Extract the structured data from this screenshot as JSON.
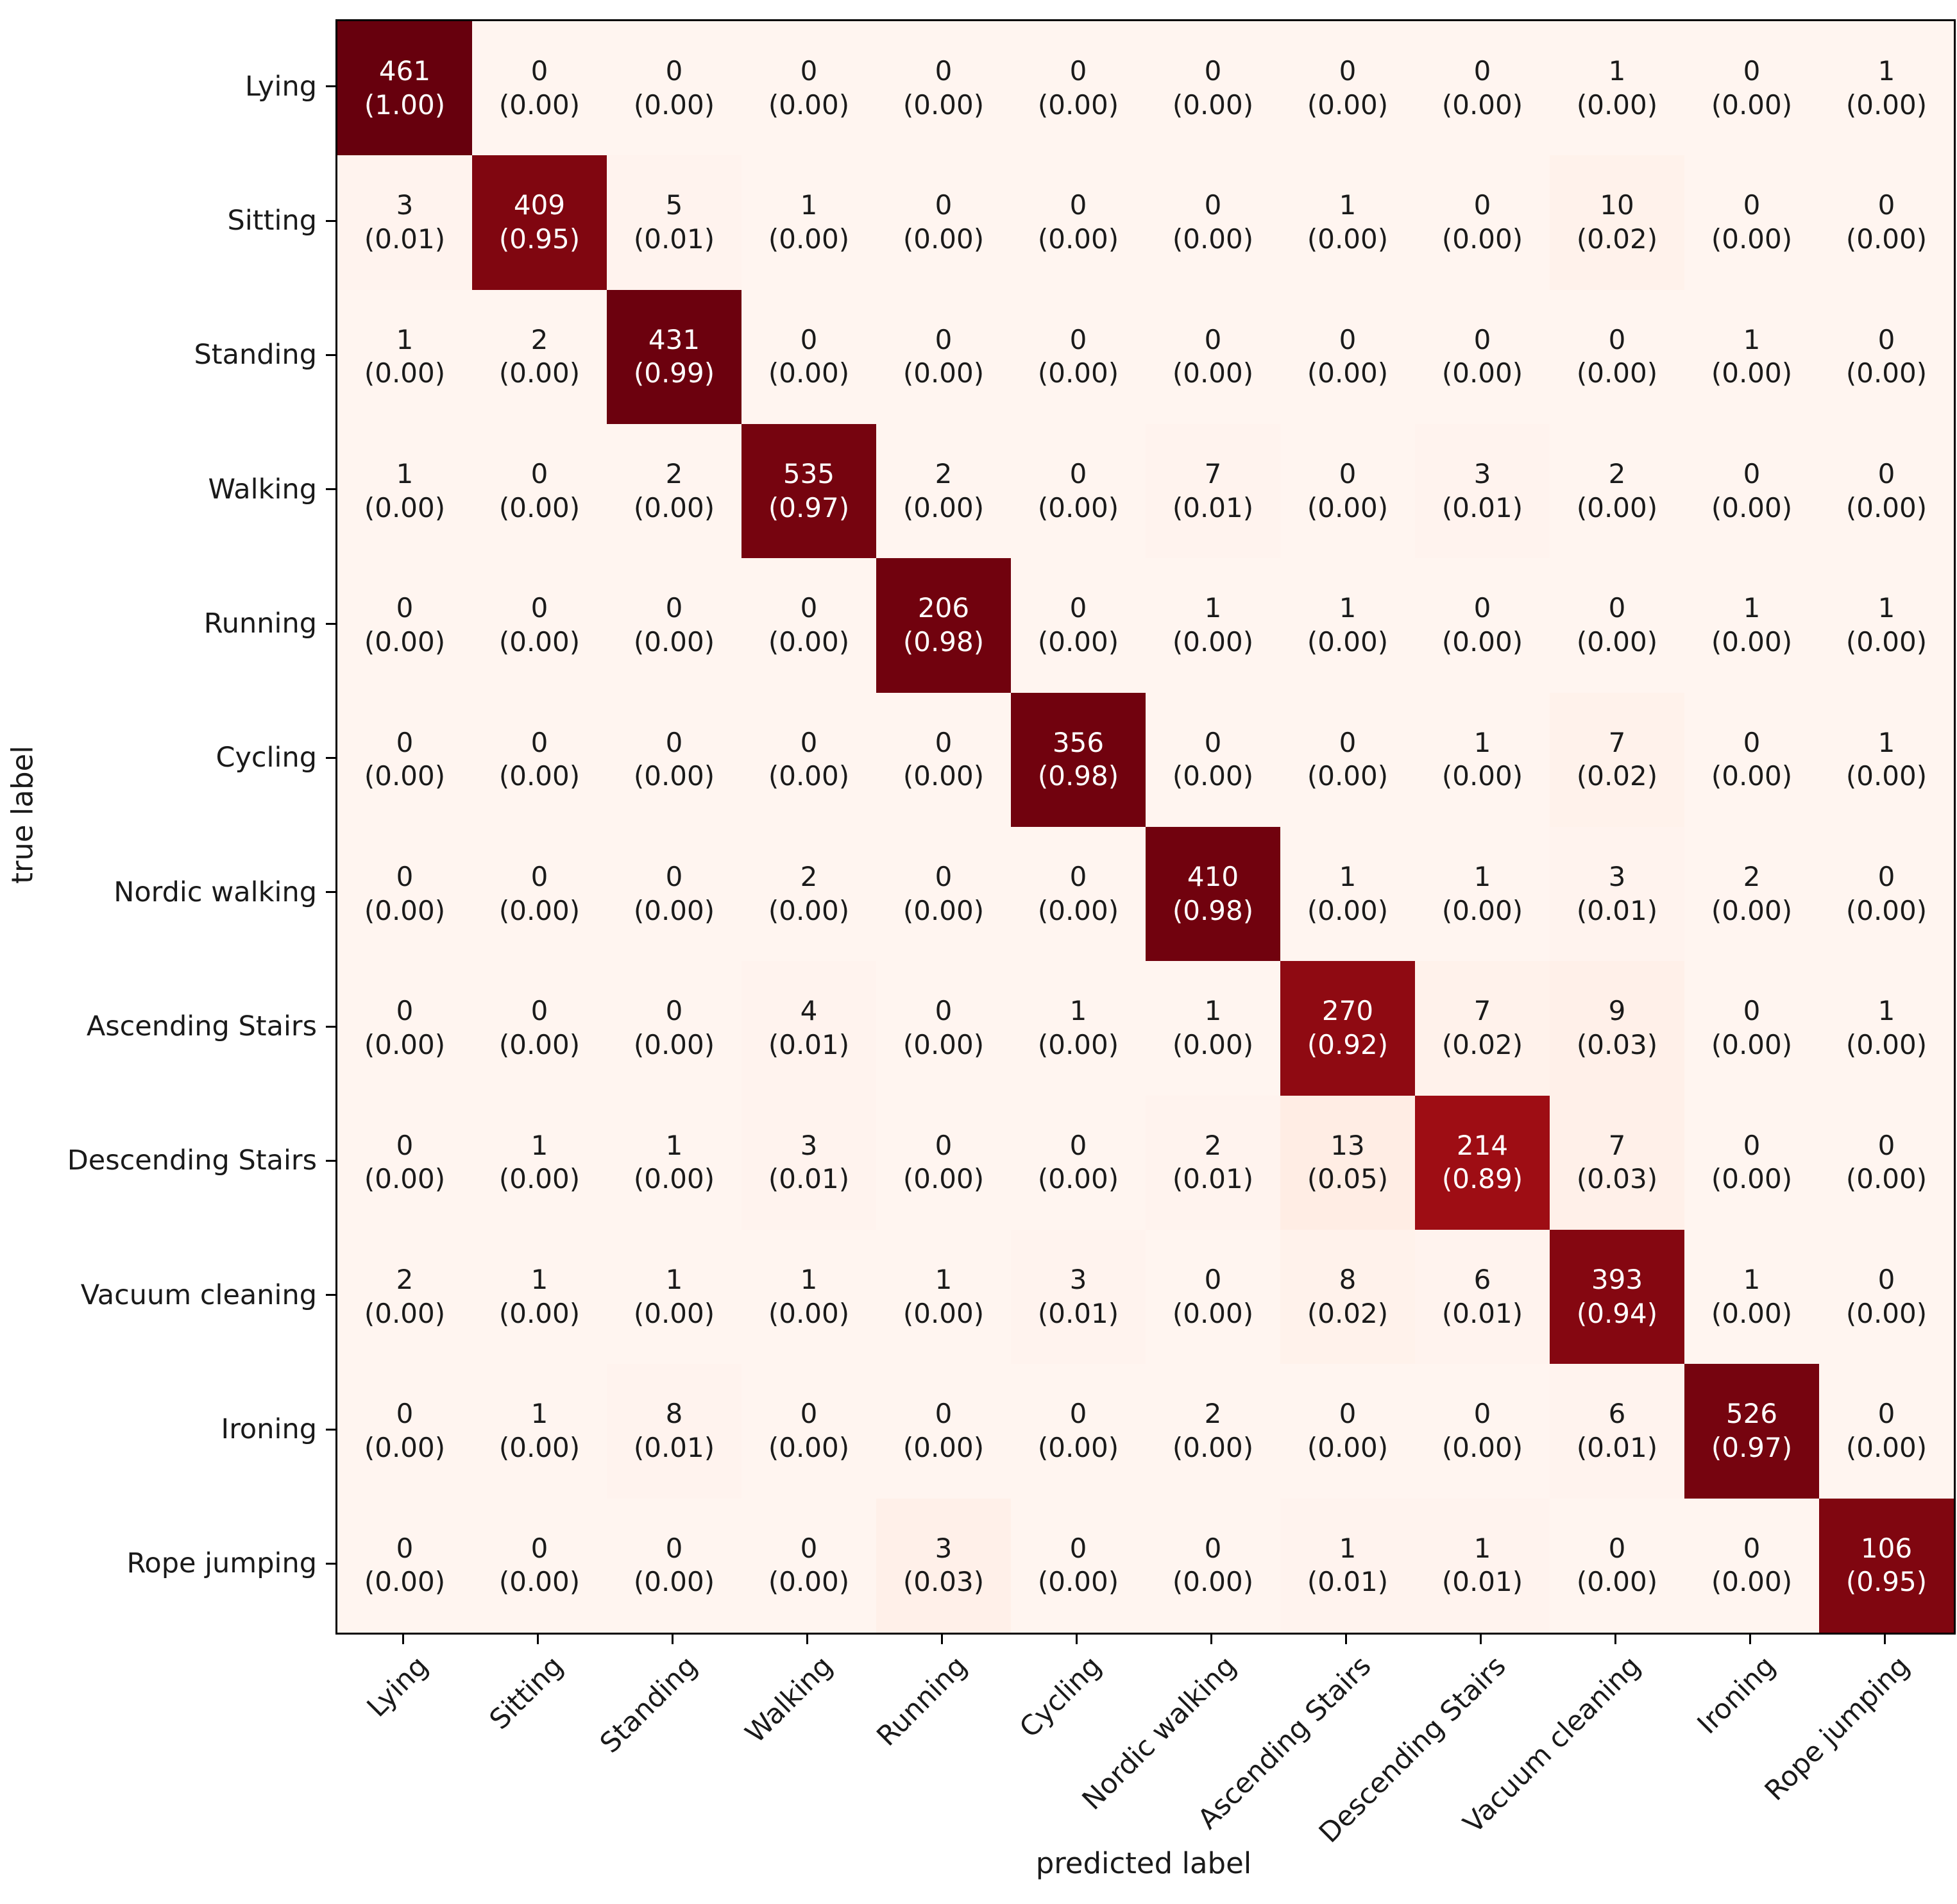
{
  "chart_data": {
    "type": "heatmap",
    "title": "",
    "xlabel": "predicted label",
    "ylabel": "true label",
    "labels": [
      "Lying",
      "Sitting",
      "Standing",
      "Walking",
      "Running",
      "Cycling",
      "Nordic walking",
      "Ascending Stairs",
      "Descending Stairs",
      "Vacuum cleaning",
      "Ironing",
      "Rope jumping"
    ],
    "cell_text_format": "count over (fraction), fraction shown with 2 decimals",
    "value_range": [
      0,
      1
    ],
    "grid": "off",
    "rows": [
      {
        "label": "Lying",
        "counts": [
          461,
          0,
          0,
          0,
          0,
          0,
          0,
          0,
          0,
          1,
          0,
          1
        ],
        "fractions": [
          1.0,
          0,
          0,
          0,
          0,
          0,
          0,
          0,
          0,
          0,
          0,
          0
        ]
      },
      {
        "label": "Sitting",
        "counts": [
          3,
          409,
          5,
          1,
          0,
          0,
          0,
          1,
          0,
          10,
          0,
          0
        ],
        "fractions": [
          0.01,
          0.95,
          0.01,
          0,
          0,
          0,
          0,
          0,
          0,
          0.02,
          0,
          0
        ]
      },
      {
        "label": "Standing",
        "counts": [
          1,
          2,
          431,
          0,
          0,
          0,
          0,
          0,
          0,
          0,
          1,
          0
        ],
        "fractions": [
          0,
          0,
          0.99,
          0,
          0,
          0,
          0,
          0,
          0,
          0,
          0,
          0
        ]
      },
      {
        "label": "Walking",
        "counts": [
          1,
          0,
          2,
          535,
          2,
          0,
          7,
          0,
          3,
          2,
          0,
          0
        ],
        "fractions": [
          0,
          0,
          0,
          0.97,
          0,
          0,
          0.01,
          0,
          0.01,
          0,
          0,
          0
        ]
      },
      {
        "label": "Running",
        "counts": [
          0,
          0,
          0,
          0,
          206,
          0,
          1,
          1,
          0,
          0,
          1,
          1
        ],
        "fractions": [
          0,
          0,
          0,
          0,
          0.98,
          0,
          0,
          0,
          0,
          0,
          0,
          0
        ]
      },
      {
        "label": "Cycling",
        "counts": [
          0,
          0,
          0,
          0,
          0,
          356,
          0,
          0,
          1,
          7,
          0,
          1
        ],
        "fractions": [
          0,
          0,
          0,
          0,
          0,
          0.98,
          0,
          0,
          0,
          0.02,
          0,
          0
        ]
      },
      {
        "label": "Nordic walking",
        "counts": [
          0,
          0,
          0,
          2,
          0,
          0,
          410,
          1,
          1,
          3,
          2,
          0
        ],
        "fractions": [
          0,
          0,
          0,
          0,
          0,
          0,
          0.98,
          0,
          0,
          0.01,
          0,
          0
        ]
      },
      {
        "label": "Ascending Stairs",
        "counts": [
          0,
          0,
          0,
          4,
          0,
          1,
          1,
          270,
          7,
          9,
          0,
          1
        ],
        "fractions": [
          0,
          0,
          0,
          0.01,
          0,
          0,
          0,
          0.92,
          0.02,
          0.03,
          0,
          0
        ]
      },
      {
        "label": "Descending Stairs",
        "counts": [
          0,
          1,
          1,
          3,
          0,
          0,
          2,
          13,
          214,
          7,
          0,
          0
        ],
        "fractions": [
          0,
          0,
          0,
          0.01,
          0,
          0,
          0.01,
          0.05,
          0.89,
          0.03,
          0,
          0
        ]
      },
      {
        "label": "Vacuum cleaning",
        "counts": [
          2,
          1,
          1,
          1,
          1,
          3,
          0,
          8,
          6,
          393,
          1,
          0
        ],
        "fractions": [
          0,
          0,
          0,
          0,
          0,
          0.01,
          0,
          0.02,
          0.01,
          0.94,
          0,
          0
        ]
      },
      {
        "label": "Ironing",
        "counts": [
          0,
          1,
          8,
          0,
          0,
          0,
          2,
          0,
          0,
          6,
          526,
          0
        ],
        "fractions": [
          0,
          0,
          0.01,
          0,
          0,
          0,
          0,
          0,
          0,
          0.01,
          0.97,
          0
        ]
      },
      {
        "label": "Rope jumping",
        "counts": [
          0,
          0,
          0,
          0,
          3,
          0,
          0,
          1,
          1,
          0,
          0,
          106
        ],
        "fractions": [
          0,
          0,
          0,
          0,
          0.03,
          0,
          0,
          0.01,
          0.01,
          0,
          0,
          0.95
        ]
      }
    ],
    "colormap": {
      "name": "Reds",
      "anchors": [
        [
          0.0,
          "#fff5f0"
        ],
        [
          0.125,
          "#fee0d2"
        ],
        [
          0.25,
          "#fcbba1"
        ],
        [
          0.375,
          "#fc9272"
        ],
        [
          0.5,
          "#fb6a4a"
        ],
        [
          0.625,
          "#ef3b2c"
        ],
        [
          0.75,
          "#cb181d"
        ],
        [
          0.875,
          "#a50f15"
        ],
        [
          1.0,
          "#67000d"
        ]
      ]
    },
    "text_colors": {
      "on_dark": "#ffffff",
      "on_light": "#1a1a1a",
      "threshold": 0.5
    },
    "axis_color": "#000000"
  }
}
